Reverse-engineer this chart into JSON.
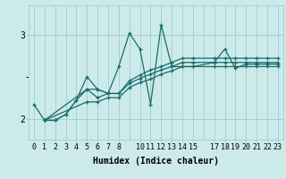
{
  "xlabel": "Humidex (Indice chaleur)",
  "bg_color": "#cdeaea",
  "grid_color": "#9ecece",
  "line_color": "#1a6b6b",
  "xlim": [
    -0.5,
    23.5
  ],
  "ylim": [
    1.75,
    3.35
  ],
  "xticks": [
    0,
    1,
    2,
    3,
    4,
    5,
    6,
    7,
    8,
    10,
    11,
    12,
    13,
    14,
    15,
    17,
    18,
    19,
    20,
    21,
    22,
    23
  ],
  "yticks": [
    2,
    3
  ],
  "line1_x": [
    0,
    1,
    2,
    3,
    4,
    5,
    6,
    7,
    8,
    9,
    10,
    11,
    12,
    13,
    14,
    15,
    17,
    18,
    19,
    20,
    21,
    22,
    23
  ],
  "line1_y": [
    2.17,
    1.98,
    1.98,
    2.05,
    2.22,
    2.5,
    2.35,
    2.3,
    2.62,
    3.02,
    2.83,
    2.17,
    3.12,
    2.62,
    2.62,
    2.62,
    2.67,
    2.83,
    2.6,
    2.65,
    2.65,
    2.65,
    2.65
  ],
  "line2_x": [
    1,
    2,
    3,
    4,
    5,
    6,
    7,
    8,
    9,
    10,
    11,
    12,
    13,
    14,
    15,
    17,
    18,
    19,
    20,
    21,
    22,
    23
  ],
  "line2_y": [
    1.98,
    1.98,
    2.05,
    2.22,
    2.35,
    2.35,
    2.3,
    2.3,
    2.45,
    2.52,
    2.58,
    2.62,
    2.67,
    2.72,
    2.72,
    2.72,
    2.72,
    2.72,
    2.72,
    2.72,
    2.72,
    2.72
  ],
  "line3_x": [
    1,
    5,
    6,
    7,
    8,
    9,
    10,
    11,
    12,
    13,
    14,
    15,
    17,
    18,
    19,
    20,
    21,
    22,
    23
  ],
  "line3_y": [
    1.98,
    2.35,
    2.25,
    2.3,
    2.3,
    2.42,
    2.48,
    2.53,
    2.58,
    2.62,
    2.67,
    2.67,
    2.67,
    2.67,
    2.67,
    2.67,
    2.67,
    2.67,
    2.67
  ],
  "line4_x": [
    1,
    5,
    6,
    7,
    8,
    9,
    10,
    11,
    12,
    13,
    14,
    15,
    17,
    18,
    19,
    20,
    21,
    22,
    23
  ],
  "line4_y": [
    1.98,
    2.2,
    2.2,
    2.25,
    2.25,
    2.37,
    2.43,
    2.47,
    2.53,
    2.57,
    2.62,
    2.62,
    2.62,
    2.62,
    2.62,
    2.62,
    2.62,
    2.62,
    2.62
  ],
  "marker": "+",
  "markersize": 3.5,
  "linewidth": 0.9,
  "xlabel_fontsize": 7,
  "tick_fontsize": 6
}
